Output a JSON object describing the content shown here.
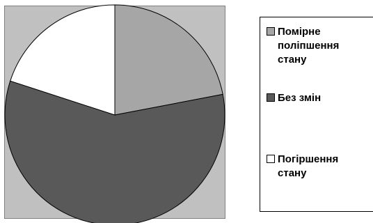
{
  "chart_data": {
    "type": "pie",
    "title": "",
    "slices": [
      {
        "label": "Помірне\nполіпшення\nстану",
        "value": 22,
        "color": "#a6a6a6"
      },
      {
        "label": "Без змін",
        "value": 58,
        "color": "#595959"
      },
      {
        "label": "Погіршення\nстану",
        "value": 20,
        "color": "#ffffff"
      }
    ],
    "start_angle_degrees": 0,
    "direction": "clockwise",
    "plot_area_background": "#c0c0c0",
    "legend": {
      "position": "right",
      "items": [
        {
          "label": "Помірне\nполіпшення\nстану",
          "color": "#a6a6a6"
        },
        {
          "label": "Без змін",
          "color": "#595959"
        },
        {
          "label": "Погіршення\nстану",
          "color": "#ffffff"
        }
      ]
    }
  }
}
